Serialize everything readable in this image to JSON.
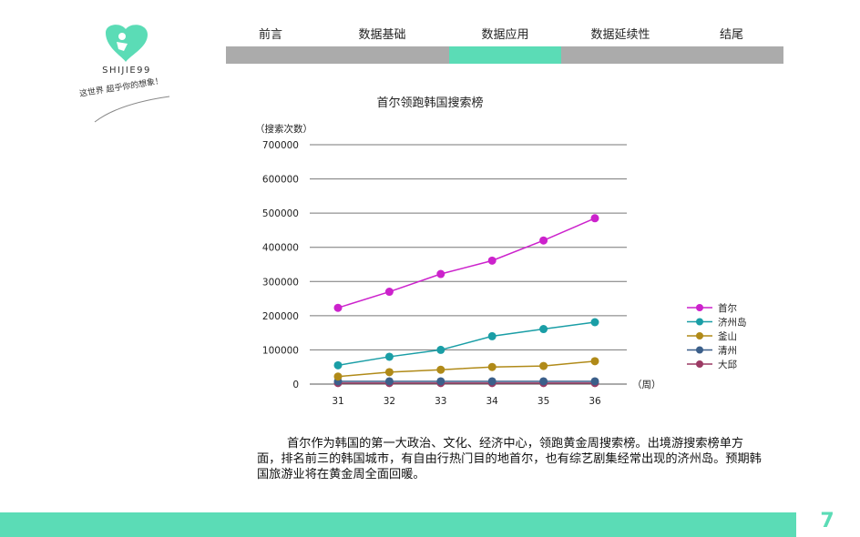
{
  "brand": {
    "name": "SHIJIE99",
    "slogan": "这世界 超乎你的想象！"
  },
  "nav": {
    "items": [
      {
        "label": "前言",
        "active": false
      },
      {
        "label": "数据基础",
        "active": false
      },
      {
        "label": "数据应用",
        "active": true
      },
      {
        "label": "数据延续性",
        "active": false
      },
      {
        "label": "结尾",
        "active": false
      }
    ]
  },
  "colors": {
    "accent": "#5bdcb6",
    "nav_gray": "#ababab"
  },
  "chart_data": {
    "type": "line",
    "title": "首尔领跑韩国搜索榜",
    "ylabel": "（搜索次数）",
    "xlabel": "（周）",
    "x": [
      31,
      32,
      33,
      34,
      35,
      36
    ],
    "ylim": [
      0,
      700000
    ],
    "yticks": [
      0,
      100000,
      200000,
      300000,
      400000,
      500000,
      600000,
      700000
    ],
    "legend_position": "right",
    "grid": true,
    "series": [
      {
        "name": "首尔",
        "color": "#cc22cc",
        "values": [
          223000,
          270000,
          322000,
          361000,
          420000,
          485000
        ]
      },
      {
        "name": "济州岛",
        "color": "#1a9ea6",
        "values": [
          55000,
          80000,
          100000,
          140000,
          161000,
          181000
        ]
      },
      {
        "name": "釜山",
        "color": "#b08a18",
        "values": [
          22000,
          35000,
          42000,
          50000,
          53000,
          67000
        ]
      },
      {
        "name": "清州",
        "color": "#3b5f8a",
        "values": [
          8000,
          8000,
          8000,
          8000,
          8000,
          8000
        ]
      },
      {
        "name": "大邱",
        "color": "#9c3a64",
        "values": [
          3000,
          3000,
          3000,
          3000,
          3000,
          3000
        ]
      }
    ]
  },
  "paragraph": "首尔作为韩国的第一大政治、文化、经济中心，领跑黄金周搜索榜。出境游搜索榜单方面，排名前三的韩国城市，有自由行热门目的地首尔，也有综艺剧集经常出现的济州岛。预期韩国旅游业将在黄金周全面回暖。",
  "page_number": "7"
}
